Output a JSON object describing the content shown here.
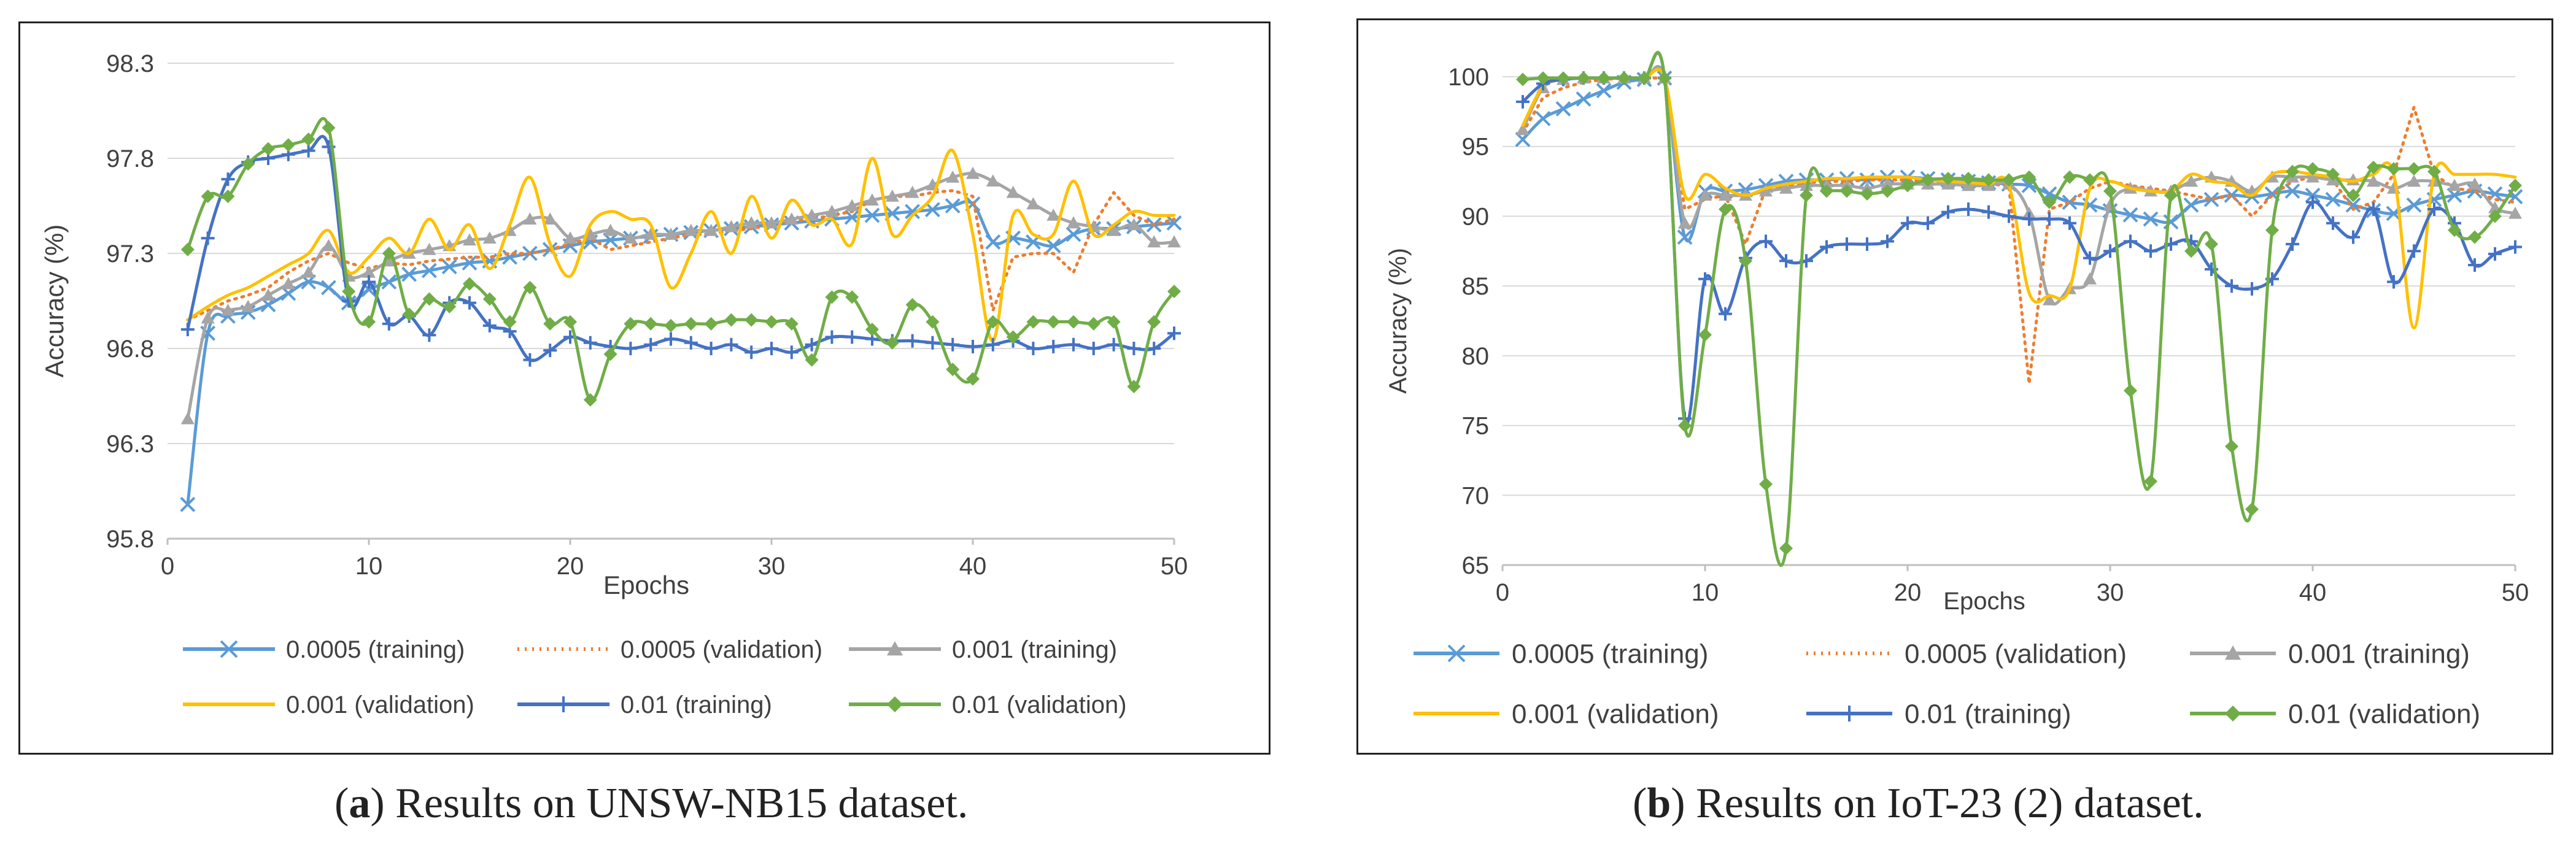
{
  "colors": {
    "lr0005_train": "#5B9BD5",
    "lr0005_val": "#ED7D31",
    "lr001_train": "#A5A5A5",
    "lr001_val": "#FFC000",
    "lr01_train": "#4472C4",
    "lr01_val": "#70AD47",
    "grid": "#D9D9D9",
    "axis_text": "#404040"
  },
  "captions": {
    "a": {
      "letter": "a",
      "text": " Results on UNSW-NB15 dataset."
    },
    "b": {
      "letter": "b",
      "text": " Results on IoT-23 (2) dataset."
    }
  },
  "chart_data": [
    {
      "type": "line",
      "title": "",
      "xlabel": "Epochs",
      "ylabel": "Accuracy (%)",
      "xlim": [
        0,
        50
      ],
      "ylim": [
        95.8,
        98.3
      ],
      "xticks": [
        0,
        10,
        20,
        30,
        40,
        50
      ],
      "yticks": [
        95.8,
        96.3,
        96.8,
        97.3,
        97.8,
        98.3
      ],
      "ytick_labels": [
        "95.8",
        "96.3",
        "96.8",
        "97.3",
        "97.8",
        "98.3"
      ],
      "grid": true,
      "legend_position": "bottom",
      "x": [
        1,
        2,
        3,
        4,
        5,
        6,
        7,
        8,
        9,
        10,
        11,
        12,
        13,
        14,
        15,
        16,
        17,
        18,
        19,
        20,
        21,
        22,
        23,
        24,
        25,
        26,
        27,
        28,
        29,
        30,
        31,
        32,
        33,
        34,
        35,
        36,
        37,
        38,
        39,
        40,
        41,
        42,
        43,
        44,
        45,
        46,
        47,
        48,
        49,
        50
      ],
      "series": [
        {
          "name": "0.0005 (training)",
          "color": "#5B9BD5",
          "dash": "solid",
          "marker": "x",
          "values": [
            95.98,
            96.88,
            96.97,
            96.99,
            97.03,
            97.09,
            97.15,
            97.12,
            97.04,
            97.11,
            97.15,
            97.19,
            97.21,
            97.23,
            97.25,
            97.26,
            97.28,
            97.3,
            97.32,
            97.34,
            97.36,
            97.37,
            97.38,
            97.39,
            97.4,
            97.41,
            97.42,
            97.43,
            97.44,
            97.45,
            97.46,
            97.47,
            97.48,
            97.49,
            97.5,
            97.51,
            97.52,
            97.53,
            97.55,
            97.56,
            97.36,
            97.38,
            97.36,
            97.34,
            97.4,
            97.43,
            97.43,
            97.44,
            97.45,
            97.46
          ]
        },
        {
          "name": "0.0005 (validation)",
          "color": "#ED7D31",
          "dash": "dotted",
          "marker": "none",
          "values": [
            96.95,
            97.0,
            97.05,
            97.08,
            97.12,
            97.2,
            97.26,
            97.3,
            97.25,
            97.22,
            97.25,
            97.24,
            97.26,
            97.27,
            97.28,
            97.28,
            97.3,
            97.3,
            97.32,
            97.35,
            97.38,
            97.32,
            97.34,
            97.36,
            97.38,
            97.4,
            97.4,
            97.42,
            97.43,
            97.45,
            97.47,
            97.48,
            97.5,
            97.52,
            97.58,
            97.6,
            97.6,
            97.62,
            97.63,
            97.6,
            97.0,
            97.28,
            97.3,
            97.3,
            97.2,
            97.45,
            97.62,
            97.5,
            97.45,
            97.48
          ]
        },
        {
          "name": "0.001 (training)",
          "color": "#A5A5A5",
          "dash": "solid",
          "marker": "triangle",
          "values": [
            96.43,
            96.96,
            97.0,
            97.02,
            97.08,
            97.14,
            97.2,
            97.34,
            97.18,
            97.2,
            97.26,
            97.3,
            97.32,
            97.34,
            97.37,
            97.38,
            97.42,
            97.48,
            97.48,
            97.38,
            97.4,
            97.42,
            97.38,
            97.4,
            97.4,
            97.42,
            97.42,
            97.44,
            97.46,
            97.46,
            97.48,
            97.5,
            97.52,
            97.55,
            97.58,
            97.6,
            97.62,
            97.66,
            97.7,
            97.72,
            97.68,
            97.62,
            97.56,
            97.5,
            97.46,
            97.44,
            97.42,
            97.45,
            97.36,
            97.36
          ]
        },
        {
          "name": "0.001 (validation)",
          "color": "#FFC000",
          "dash": "solid",
          "marker": "none",
          "values": [
            96.95,
            97.02,
            97.08,
            97.12,
            97.18,
            97.24,
            97.3,
            97.42,
            97.2,
            97.28,
            97.38,
            97.3,
            97.48,
            97.32,
            97.45,
            97.22,
            97.45,
            97.7,
            97.35,
            97.18,
            97.45,
            97.52,
            97.48,
            97.45,
            97.12,
            97.3,
            97.52,
            97.3,
            97.6,
            97.38,
            97.58,
            97.45,
            97.48,
            97.35,
            97.8,
            97.4,
            97.5,
            97.6,
            97.84,
            97.4,
            96.84,
            97.5,
            97.4,
            97.4,
            97.68,
            97.4,
            97.45,
            97.52,
            97.5,
            97.5
          ]
        },
        {
          "name": "0.01 (training)",
          "color": "#4472C4",
          "dash": "solid",
          "marker": "plus",
          "values": [
            96.9,
            97.38,
            97.69,
            97.78,
            97.8,
            97.82,
            97.84,
            97.86,
            97.05,
            97.15,
            96.93,
            96.97,
            96.87,
            97.04,
            97.04,
            96.92,
            96.89,
            96.74,
            96.79,
            96.86,
            96.83,
            96.81,
            96.8,
            96.82,
            96.85,
            96.83,
            96.8,
            96.82,
            96.78,
            96.8,
            96.78,
            96.82,
            96.86,
            96.86,
            96.85,
            96.84,
            96.84,
            96.83,
            96.82,
            96.81,
            96.82,
            96.84,
            96.8,
            96.81,
            96.82,
            96.8,
            96.82,
            96.8,
            96.8,
            96.88
          ]
        },
        {
          "name": "0.01 (validation)",
          "color": "#70AD47",
          "dash": "solid",
          "marker": "diamond",
          "values": [
            97.32,
            97.6,
            97.6,
            97.77,
            97.85,
            97.87,
            97.9,
            97.96,
            97.1,
            96.94,
            97.3,
            96.98,
            97.06,
            97.02,
            97.14,
            97.06,
            96.94,
            97.12,
            96.93,
            96.94,
            96.53,
            96.77,
            96.93,
            96.93,
            96.92,
            96.93,
            96.93,
            96.95,
            96.95,
            96.94,
            96.93,
            96.74,
            97.07,
            97.07,
            96.9,
            96.83,
            97.03,
            96.94,
            96.69,
            96.64,
            96.94,
            96.86,
            96.94,
            96.94,
            96.94,
            96.93,
            96.94,
            96.6,
            96.94,
            97.1
          ]
        }
      ]
    },
    {
      "type": "line",
      "title": "",
      "xlabel": "Epochs",
      "ylabel": "Accuracy (%)",
      "xlim": [
        0,
        50
      ],
      "ylim": [
        65,
        100
      ],
      "xticks": [
        0,
        10,
        20,
        30,
        40,
        50
      ],
      "yticks": [
        65,
        70,
        75,
        80,
        85,
        90,
        95,
        100
      ],
      "ytick_labels": [
        "65",
        "70",
        "75",
        "80",
        "85",
        "90",
        "95",
        "100"
      ],
      "grid": true,
      "legend_position": "bottom",
      "x": [
        1,
        2,
        3,
        4,
        5,
        6,
        7,
        8,
        9,
        10,
        11,
        12,
        13,
        14,
        15,
        16,
        17,
        18,
        19,
        20,
        21,
        22,
        23,
        24,
        25,
        26,
        27,
        28,
        29,
        30,
        31,
        32,
        33,
        34,
        35,
        36,
        37,
        38,
        39,
        40,
        41,
        42,
        43,
        44,
        45,
        46,
        47,
        48,
        49,
        50
      ],
      "series": [
        {
          "name": "0.0005 (training)",
          "color": "#5B9BD5",
          "dash": "solid",
          "marker": "x",
          "values": [
            95.5,
            97.0,
            97.7,
            98.4,
            99.0,
            99.6,
            99.8,
            99.9,
            88.5,
            91.8,
            91.8,
            91.9,
            92.2,
            92.5,
            92.6,
            92.6,
            92.7,
            92.6,
            92.8,
            92.8,
            92.7,
            92.6,
            92.5,
            92.4,
            92.3,
            92.2,
            91.6,
            91.0,
            90.8,
            90.4,
            90.1,
            89.8,
            89.6,
            90.8,
            91.2,
            91.5,
            91.4,
            91.6,
            91.8,
            91.5,
            91.2,
            90.8,
            90.4,
            90.2,
            90.8,
            91.2,
            91.5,
            91.8,
            91.6,
            91.4
          ]
        },
        {
          "name": "0.0005 (validation)",
          "color": "#ED7D31",
          "dash": "dotted",
          "marker": "none",
          "values": [
            96.0,
            98.5,
            99.2,
            99.6,
            99.8,
            99.9,
            99.9,
            99.9,
            90.5,
            91.2,
            91.5,
            88.0,
            92.0,
            92.2,
            92.4,
            92.5,
            92.5,
            92.6,
            92.6,
            92.6,
            92.5,
            92.5,
            92.4,
            92.3,
            92.2,
            78.0,
            90.5,
            91.0,
            92.0,
            92.5,
            92.2,
            92.0,
            91.8,
            91.5,
            91.2,
            91.5,
            90.0,
            91.5,
            92.5,
            92.8,
            92.6,
            90.5,
            91.0,
            93.0,
            97.8,
            93.0,
            92.0,
            91.8,
            91.2,
            91.0
          ]
        },
        {
          "name": "0.001 (training)",
          "color": "#A5A5A5",
          "dash": "solid",
          "marker": "triangle",
          "values": [
            96.2,
            99.2,
            99.8,
            99.9,
            99.9,
            99.9,
            99.9,
            99.9,
            89.5,
            91.5,
            91.5,
            91.5,
            91.8,
            92.0,
            92.2,
            92.2,
            92.2,
            92.0,
            92.3,
            92.3,
            92.3,
            92.3,
            92.2,
            92.2,
            92.3,
            90.2,
            84.0,
            84.8,
            85.5,
            90.8,
            92.0,
            91.8,
            91.8,
            92.5,
            92.8,
            92.5,
            91.8,
            92.8,
            92.8,
            92.8,
            92.6,
            92.6,
            92.5,
            92.0,
            92.5,
            92.5,
            92.2,
            92.3,
            90.6,
            90.2
          ]
        },
        {
          "name": "0.001 (validation)",
          "color": "#FFC000",
          "dash": "solid",
          "marker": "none",
          "values": [
            96.5,
            99.3,
            99.8,
            99.9,
            99.9,
            99.9,
            99.9,
            99.9,
            91.5,
            93.0,
            92.0,
            91.5,
            92.0,
            92.3,
            92.5,
            92.7,
            92.7,
            92.8,
            92.8,
            92.8,
            92.6,
            92.5,
            92.4,
            92.3,
            92.2,
            84.5,
            84.3,
            84.8,
            92.0,
            92.5,
            92.0,
            91.8,
            91.8,
            93.0,
            92.5,
            92.3,
            91.5,
            93.0,
            93.2,
            93.0,
            92.8,
            92.5,
            93.0,
            93.0,
            82.0,
            93.0,
            93.0,
            93.0,
            93.0,
            92.8
          ]
        },
        {
          "name": "0.01 (training)",
          "color": "#4472C4",
          "dash": "solid",
          "marker": "plus",
          "values": [
            98.2,
            99.5,
            99.8,
            99.9,
            99.9,
            99.9,
            99.9,
            99.9,
            75.5,
            85.5,
            83.0,
            87.0,
            88.2,
            86.8,
            86.8,
            87.8,
            88.0,
            88.0,
            88.2,
            89.5,
            89.5,
            90.3,
            90.5,
            90.3,
            90.0,
            89.8,
            89.8,
            89.5,
            87.0,
            87.5,
            88.2,
            87.5,
            88.0,
            88.2,
            86.2,
            85.0,
            84.8,
            85.5,
            88.0,
            91.0,
            89.5,
            88.5,
            90.5,
            85.3,
            87.5,
            90.5,
            89.5,
            86.5,
            87.3,
            87.8
          ]
        },
        {
          "name": "0.01 (validation)",
          "color": "#70AD47",
          "dash": "solid",
          "marker": "diamond",
          "values": [
            99.8,
            99.9,
            99.9,
            99.9,
            99.9,
            99.9,
            99.9,
            99.9,
            75.0,
            81.5,
            90.5,
            86.8,
            70.8,
            66.2,
            91.5,
            91.8,
            91.8,
            91.6,
            91.8,
            92.2,
            92.6,
            92.7,
            92.7,
            92.6,
            92.6,
            92.8,
            91.0,
            92.8,
            92.6,
            91.8,
            77.5,
            71.0,
            91.5,
            87.5,
            88.0,
            73.5,
            69.0,
            89.0,
            93.2,
            93.4,
            93.0,
            91.5,
            93.5,
            93.4,
            93.4,
            93.2,
            89.0,
            88.5,
            90.0,
            92.2
          ]
        }
      ]
    }
  ]
}
